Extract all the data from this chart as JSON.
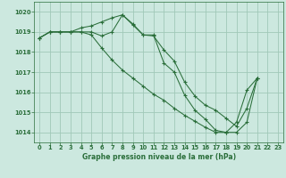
{
  "title": "Graphe pression niveau de la mer (hPa)",
  "bg_color": "#cce8df",
  "grid_color": "#a0c8b8",
  "line_color": "#2a6e3a",
  "xlim": [
    -0.5,
    23.5
  ],
  "ylim": [
    1013.5,
    1020.5
  ],
  "yticks": [
    1014,
    1015,
    1016,
    1017,
    1018,
    1019,
    1020
  ],
  "xticks": [
    0,
    1,
    2,
    3,
    4,
    5,
    6,
    7,
    8,
    9,
    10,
    11,
    12,
    13,
    14,
    15,
    16,
    17,
    18,
    19,
    20,
    21,
    22,
    23
  ],
  "series": [
    {
      "x": [
        0,
        1,
        2,
        3,
        4,
        5,
        6,
        7,
        8,
        9,
        10,
        11,
        12,
        13,
        14,
        15,
        16,
        17,
        18,
        19,
        20,
        21
      ],
      "y": [
        1018.7,
        1019.0,
        1019.0,
        1019.0,
        1019.0,
        1019.0,
        1018.8,
        1019.0,
        1019.85,
        1019.35,
        1018.85,
        1018.8,
        1018.1,
        1017.55,
        1016.5,
        1015.8,
        1015.35,
        1015.1,
        1014.7,
        1014.3,
        1015.2,
        1016.7
      ]
    },
    {
      "x": [
        0,
        1,
        2,
        3,
        4,
        5,
        6,
        7,
        8,
        9,
        10,
        11,
        12,
        13,
        14,
        15,
        16,
        17,
        18,
        19,
        20,
        21
      ],
      "y": [
        1018.7,
        1019.0,
        1019.0,
        1019.0,
        1019.2,
        1019.3,
        1019.5,
        1019.7,
        1019.85,
        1019.4,
        1018.85,
        1018.85,
        1017.45,
        1017.0,
        1015.85,
        1015.1,
        1014.65,
        1014.1,
        1014.0,
        1014.5,
        1016.1,
        1016.7
      ]
    },
    {
      "x": [
        0,
        1,
        2,
        3,
        4,
        5,
        6,
        7,
        8,
        9,
        10,
        11,
        12,
        13,
        14,
        15,
        16,
        17,
        18,
        19,
        20,
        21
      ],
      "y": [
        1018.7,
        1019.0,
        1019.0,
        1019.0,
        1019.0,
        1018.85,
        1018.2,
        1017.6,
        1017.1,
        1016.7,
        1016.3,
        1015.9,
        1015.6,
        1015.2,
        1014.85,
        1014.55,
        1014.25,
        1014.0,
        1014.0,
        1014.0,
        1014.5,
        1016.7
      ]
    }
  ]
}
